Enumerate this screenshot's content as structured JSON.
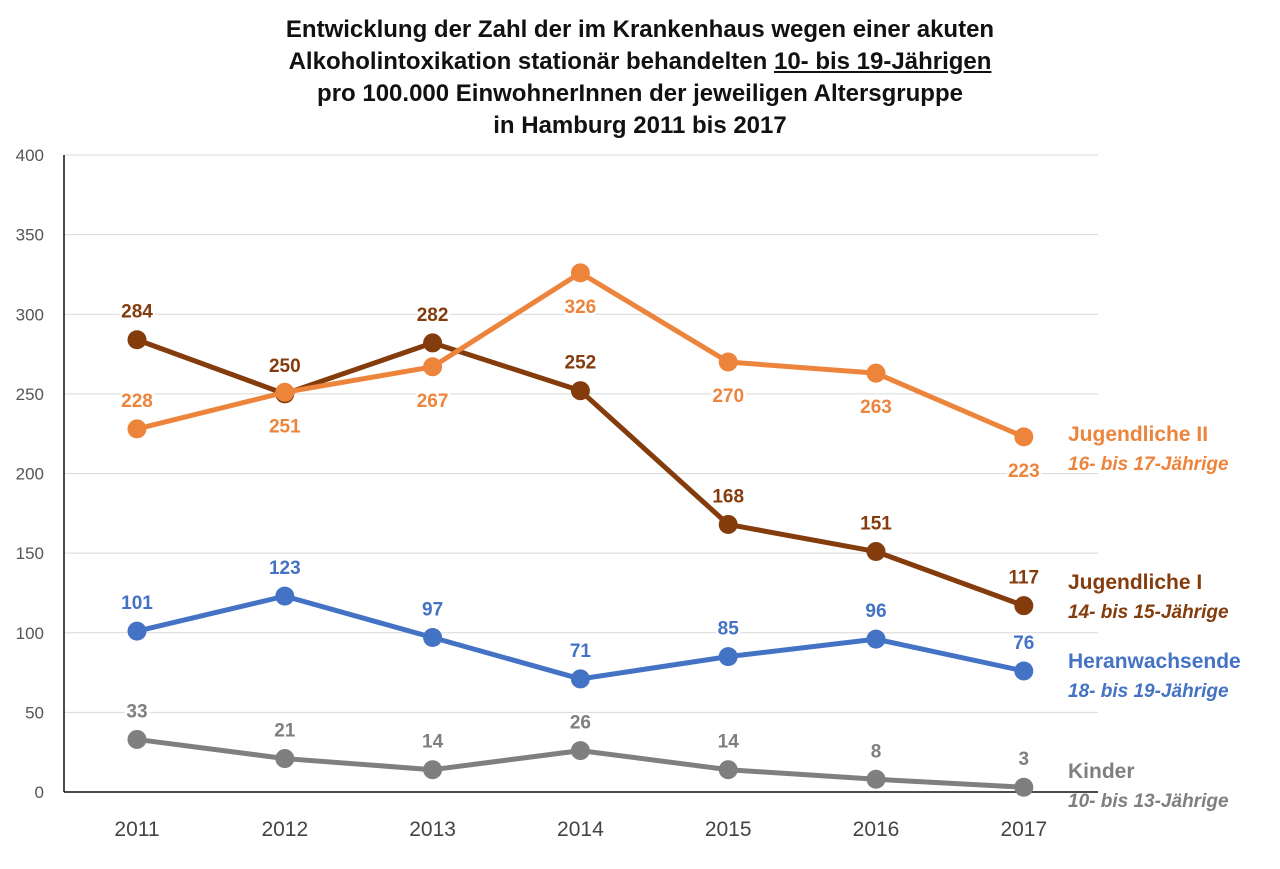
{
  "chart_data": {
    "type": "line",
    "title_lines": [
      [
        "Entwicklung der Zahl der im Krankenhaus wegen einer akuten"
      ],
      [
        "Alkoholintoxikation stationär behandelten ",
        "10- bis 19-Jährigen"
      ],
      [
        "pro 100.000 EinwohnerInnen der jeweiligen Altersgruppe"
      ],
      [
        "in Hamburg 2011 bis 2017"
      ]
    ],
    "x": [
      "2011",
      "2012",
      "2013",
      "2014",
      "2015",
      "2016",
      "2017"
    ],
    "ylim": [
      0,
      400
    ],
    "yticks": [
      "0",
      "50",
      "100",
      "150",
      "200",
      "250",
      "300",
      "350",
      "400"
    ],
    "grid": true,
    "legend_position": "right",
    "series": [
      {
        "name": "Jugendliche II",
        "subtitle": "16- bis 17-Jährige",
        "color": "#ED843C",
        "values": [
          228,
          251,
          267,
          326,
          270,
          263,
          223
        ],
        "label_pos": [
          "above",
          "below",
          "below",
          "below",
          "below",
          "below",
          "below"
        ]
      },
      {
        "name": "Jugendliche I",
        "subtitle": "14- bis 15-Jährige",
        "color": "#843C0C",
        "values": [
          284,
          250,
          282,
          252,
          168,
          151,
          117
        ],
        "label_pos": [
          "above",
          "above",
          "above",
          "above",
          "above",
          "above",
          "above"
        ]
      },
      {
        "name": "Heranwachsende",
        "subtitle": "18- bis 19-Jährige",
        "color": "#4472C4",
        "values": [
          101,
          123,
          97,
          71,
          85,
          96,
          76
        ],
        "label_pos": [
          "above",
          "above",
          "above",
          "above",
          "above",
          "above",
          "above"
        ]
      },
      {
        "name": "Kinder",
        "subtitle": "10- bis 13-Jährige",
        "color": "#7F7F7F",
        "values": [
          33,
          21,
          14,
          26,
          14,
          8,
          3
        ],
        "label_pos": [
          "above",
          "above",
          "above",
          "above",
          "above",
          "above",
          "above"
        ]
      }
    ]
  }
}
